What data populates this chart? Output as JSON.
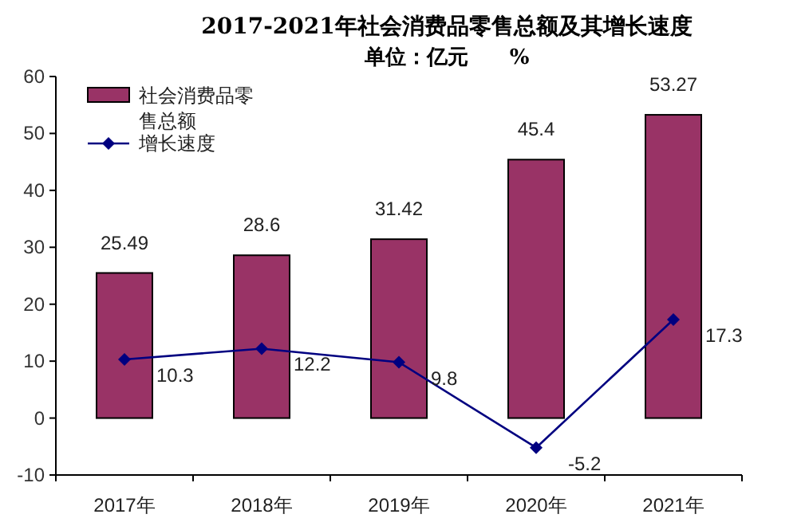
{
  "chart_data": {
    "type": "bar",
    "title": "2017-2021年社会消费品零售总额及其增长速度",
    "subtitle": "单位：亿元　　%",
    "categories": [
      "2017年",
      "2018年",
      "2019年",
      "2020年",
      "2021年"
    ],
    "series": [
      {
        "name": "社会消费品零售总额",
        "color": "#993366",
        "values": [
          25.49,
          28.6,
          31.42,
          45.4,
          53.27
        ]
      },
      {
        "name": "增长速度",
        "type": "line",
        "color": "#000080",
        "marker": "diamond",
        "values": [
          10.3,
          12.2,
          9.8,
          -5.2,
          17.3
        ]
      }
    ],
    "ylim": [
      -10,
      60
    ],
    "yticks": [
      -10,
      0,
      10,
      20,
      30,
      40,
      50,
      60
    ],
    "data_labels": true,
    "legend": "top left"
  }
}
